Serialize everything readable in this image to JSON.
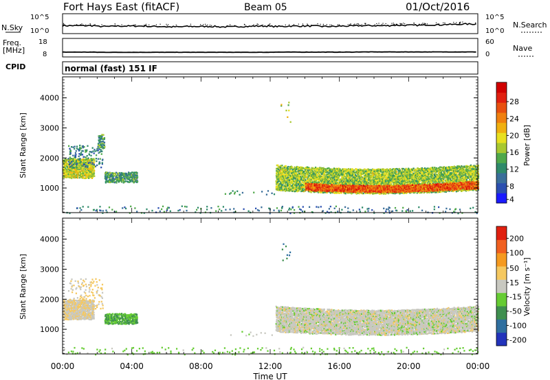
{
  "header": {
    "station": "Fort Hays East (fitACF)",
    "beam": "Beam 05",
    "date": "01/Oct/2016"
  },
  "side_labels": {
    "nsky": "N.Sky",
    "nsearch": "N.Search",
    "freq": "Freq.",
    "freq_unit": "[MHz]",
    "nave": "Nave",
    "cpid": "CPID",
    "nsky_ticks": [
      "10^5",
      "10^0"
    ],
    "nsearch_ticks": [
      "10^5",
      "10^0"
    ],
    "freq_ticks": [
      "18",
      "8"
    ],
    "nave_ticks": [
      "60",
      "0"
    ]
  },
  "mode_label": "normal (fast) 151 IF",
  "colorbars": {
    "power": {
      "label": "Power [dB]",
      "ticks": [
        "28",
        "24",
        "20",
        "16",
        "12",
        "8",
        "4"
      ],
      "colors": [
        "#1a1aff",
        "#2b4fb0",
        "#3a6e9a",
        "#2f8a6a",
        "#4fa84a",
        "#a8c830",
        "#e8e020",
        "#f0b010",
        "#f08010",
        "#e85010",
        "#e02010",
        "#d00000"
      ]
    },
    "velocity": {
      "label": "Velocity [m s⁻¹]",
      "ticks": [
        "200",
        "100",
        "50",
        "15",
        "-15",
        "-50",
        "-100",
        "-200"
      ],
      "colors": [
        "#2233bb",
        "#2f6f9f",
        "#3f8f4f",
        "#66cc33",
        "#c8c8c0",
        "#f5c860",
        "#f59a20",
        "#f06020",
        "#e02010"
      ]
    }
  },
  "chart_data": [
    {
      "type": "scatter",
      "title": "N.Sky / N.Search",
      "x_range": [
        "00:00",
        "24:00"
      ],
      "ylim_log10": [
        0,
        5
      ],
      "series": [
        {
          "name": "N.Sky",
          "values": [
            2,
            2,
            1.8,
            1.9,
            1.9,
            1.8,
            1.7,
            1.8,
            1.8,
            1.7,
            1.8,
            1.9,
            1.8,
            1.9,
            1.9,
            1.8,
            1.9,
            2,
            2,
            2.1,
            2.1,
            2.2,
            2.3,
            2.4,
            2.6
          ]
        }
      ]
    },
    {
      "type": "line",
      "title": "Freq. [MHz] / Nave",
      "x_range": [
        "00:00",
        "24:00"
      ],
      "ylim": [
        8,
        18
      ],
      "series": [
        {
          "name": "Freq.",
          "values": [
            10.6,
            10.6,
            10.5,
            10.5,
            10.5,
            10.5,
            10.5,
            10.5,
            10.5,
            10.5,
            10.5,
            10.5,
            10.6,
            10.6,
            10.6,
            10.6,
            10.6,
            10.7,
            10.7,
            10.7,
            10.7,
            10.7,
            10.7,
            10.7,
            10.7
          ]
        }
      ]
    },
    {
      "type": "heatmap",
      "title": "Power [dB]",
      "xlabel": "",
      "ylabel": "Slant Range [km]",
      "xlim_hours": [
        0,
        24
      ],
      "ylim": [
        180,
        4700
      ],
      "x_ticks": [
        "00:00",
        "04:00",
        "08:00",
        "12:00",
        "16:00",
        "20:00",
        "00:00"
      ],
      "y_ticks": [
        "1000",
        "2000",
        "3000",
        "4000"
      ],
      "regions": [
        {
          "t0": 0.0,
          "t1": 1.8,
          "r_lo": 1350,
          "r_hi": 2000,
          "v_mid": 16,
          "density": 0.9
        },
        {
          "t0": 0.3,
          "t1": 2.3,
          "r_lo": 1700,
          "r_hi": 2450,
          "v_mid": 8,
          "density": 0.4
        },
        {
          "t0": 2.0,
          "t1": 2.4,
          "r_lo": 2350,
          "r_hi": 2800,
          "v_mid": 10,
          "density": 0.7
        },
        {
          "t0": 2.4,
          "t1": 4.3,
          "r_lo": 1200,
          "r_hi": 1550,
          "v_mid": 10,
          "density": 0.8
        },
        {
          "t0": 0.0,
          "t1": 24.0,
          "r_lo": 180,
          "r_hi": 420,
          "v_mid": 8,
          "density": 0.25
        },
        {
          "t0": 9.3,
          "t1": 12.2,
          "r_lo": 800,
          "r_hi": 1000,
          "v_mid": 8,
          "density": 0.2
        },
        {
          "t0": 12.6,
          "t1": 13.2,
          "r_lo": 3200,
          "r_hi": 3900,
          "v_mid": 16,
          "density": 0.2
        },
        {
          "t0": 12.3,
          "t1": 24.0,
          "r_lo": 950,
          "r_hi": 1800,
          "v_mid": 14,
          "density": 0.85
        },
        {
          "t0": 14.0,
          "t1": 24.0,
          "r_lo": 1000,
          "r_hi": 1250,
          "v_mid": 26,
          "density": 0.9
        }
      ]
    },
    {
      "type": "heatmap",
      "title": "Velocity [m s⁻¹]",
      "xlabel": "Time UT",
      "ylabel": "Slant Range [km]",
      "xlim_hours": [
        0,
        24
      ],
      "ylim": [
        180,
        4700
      ],
      "x_ticks": [
        "00:00",
        "04:00",
        "08:00",
        "12:00",
        "16:00",
        "20:00",
        "00:00"
      ],
      "y_ticks": [
        "1000",
        "2000",
        "3000",
        "4000"
      ],
      "regions": [
        {
          "t0": 0.0,
          "t1": 1.8,
          "r_lo": 1350,
          "r_hi": 2000,
          "v_mid": -10,
          "density": 0.9
        },
        {
          "t0": 0.3,
          "t1": 2.3,
          "r_lo": 1700,
          "r_hi": 2700,
          "v_mid": -20,
          "density": 0.35
        },
        {
          "t0": 2.4,
          "t1": 4.3,
          "r_lo": 1200,
          "r_hi": 1550,
          "v_mid": 50,
          "density": 0.85
        },
        {
          "t0": 0.0,
          "t1": 24.0,
          "r_lo": 180,
          "r_hi": 420,
          "v_mid": 30,
          "density": 0.25
        },
        {
          "t0": 9.3,
          "t1": 12.2,
          "r_lo": 800,
          "r_hi": 1000,
          "v_mid": 10,
          "density": 0.2
        },
        {
          "t0": 12.6,
          "t1": 13.2,
          "r_lo": 3200,
          "r_hi": 3900,
          "v_mid": 100,
          "density": 0.2
        },
        {
          "t0": 12.3,
          "t1": 24.0,
          "r_lo": 950,
          "r_hi": 1800,
          "v_mid": 0,
          "density": 0.9
        }
      ]
    }
  ]
}
